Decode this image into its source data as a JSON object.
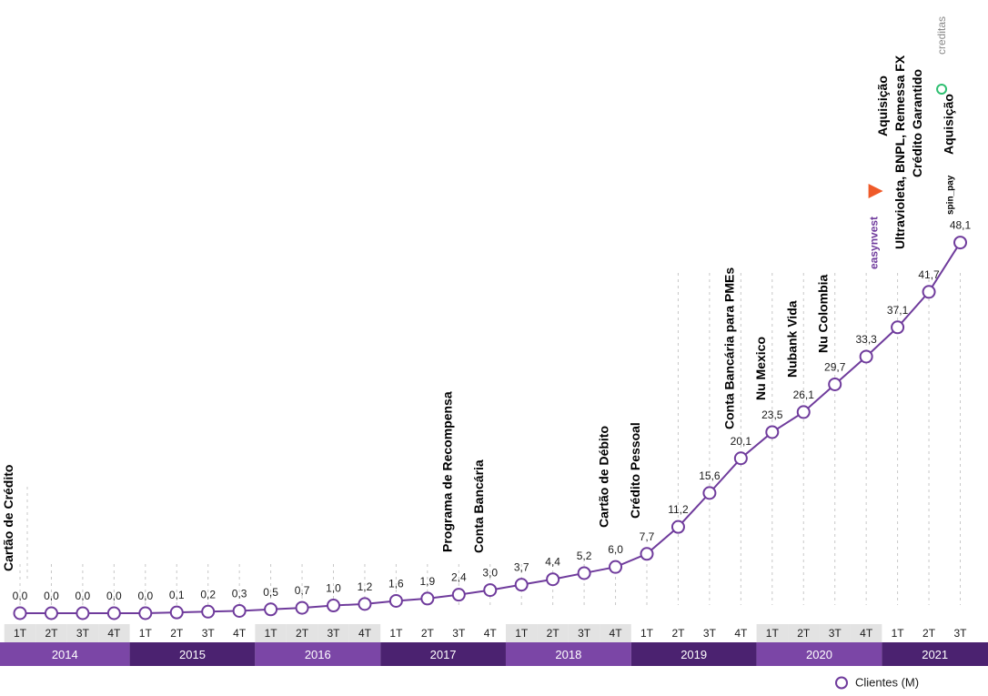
{
  "colors": {
    "line": "#6f3b9c",
    "marker_fill": "#ffffff",
    "quarter_bg": "#e3e3e3",
    "year_dark": "#4b2270",
    "year_light": "#7b46a6",
    "guide": "#c8c8c8",
    "ecosynvest_icon": "#ef5a29",
    "creditas_green": "#2fbf71"
  },
  "legend": {
    "label": "Clientes (M)"
  },
  "logos": {
    "easynvest": "easynvest",
    "creditas": "creditas",
    "spin_pay": "spin_pay"
  },
  "chart_data": {
    "type": "line",
    "x": [
      "1T",
      "2T",
      "3T",
      "4T",
      "1T",
      "2T",
      "3T",
      "4T",
      "1T",
      "2T",
      "3T",
      "4T",
      "1T",
      "2T",
      "3T",
      "4T",
      "1T",
      "2T",
      "3T",
      "4T",
      "1T",
      "2T",
      "3T",
      "4T",
      "1T",
      "2T",
      "3T",
      "4T",
      "1T",
      "2T",
      "3T"
    ],
    "years": [
      {
        "label": "2014",
        "quarters": 4
      },
      {
        "label": "2015",
        "quarters": 4
      },
      {
        "label": "2016",
        "quarters": 4
      },
      {
        "label": "2017",
        "quarters": 4
      },
      {
        "label": "2018",
        "quarters": 4
      },
      {
        "label": "2019",
        "quarters": 4
      },
      {
        "label": "2020",
        "quarters": 4
      },
      {
        "label": "2021",
        "quarters": 3
      }
    ],
    "series": [
      {
        "name": "Clientes (M)",
        "values": [
          0.0,
          0.0,
          0.0,
          0.0,
          0.0,
          0.1,
          0.2,
          0.3,
          0.5,
          0.7,
          1.0,
          1.2,
          1.6,
          1.9,
          2.4,
          3.0,
          3.7,
          4.4,
          5.2,
          6.0,
          7.7,
          11.2,
          15.6,
          20.1,
          23.5,
          26.1,
          29.7,
          33.3,
          37.1,
          41.7,
          48.1
        ],
        "labels": [
          "0,0",
          "0,0",
          "0,0",
          "0,0",
          "0,0",
          "0,1",
          "0,2",
          "0,3",
          "0,5",
          "0,7",
          "1,0",
          "1,2",
          "1,6",
          "1,9",
          "2,4",
          "3,0",
          "3,7",
          "4,4",
          "5,2",
          "6,0",
          "7,7",
          "11,2",
          "15,6",
          "20,1",
          "23,5",
          "26,1",
          "29,7",
          "33,3",
          "37,1",
          "41,7",
          "48,1"
        ]
      }
    ],
    "ylim": [
      0,
      50
    ],
    "events": [
      {
        "index": 0,
        "lines": [
          "Cartão de Crédito"
        ]
      },
      {
        "index": 14,
        "lines": [
          "Programa de Recompensa"
        ]
      },
      {
        "index": 15,
        "lines": [
          "Conta Bancária"
        ]
      },
      {
        "index": 19,
        "lines": [
          "Cartão de Débito"
        ]
      },
      {
        "index": 20,
        "lines": [
          "Crédito Pessoal"
        ]
      },
      {
        "index": 23,
        "lines": [
          "Conta Bancária para PMEs"
        ]
      },
      {
        "index": 24,
        "lines": [
          "Nu Mexico"
        ]
      },
      {
        "index": 25,
        "lines": [
          "Nubank Vida"
        ]
      },
      {
        "index": 26,
        "lines": [
          "Nu Colombia"
        ]
      },
      {
        "index": 29,
        "lines": [
          "Aquisição",
          "Ultravioleta, BNPL, Remessa FX",
          "Crédito Garantido"
        ]
      },
      {
        "index": 30,
        "lines": [
          "Aquisição"
        ]
      }
    ]
  }
}
